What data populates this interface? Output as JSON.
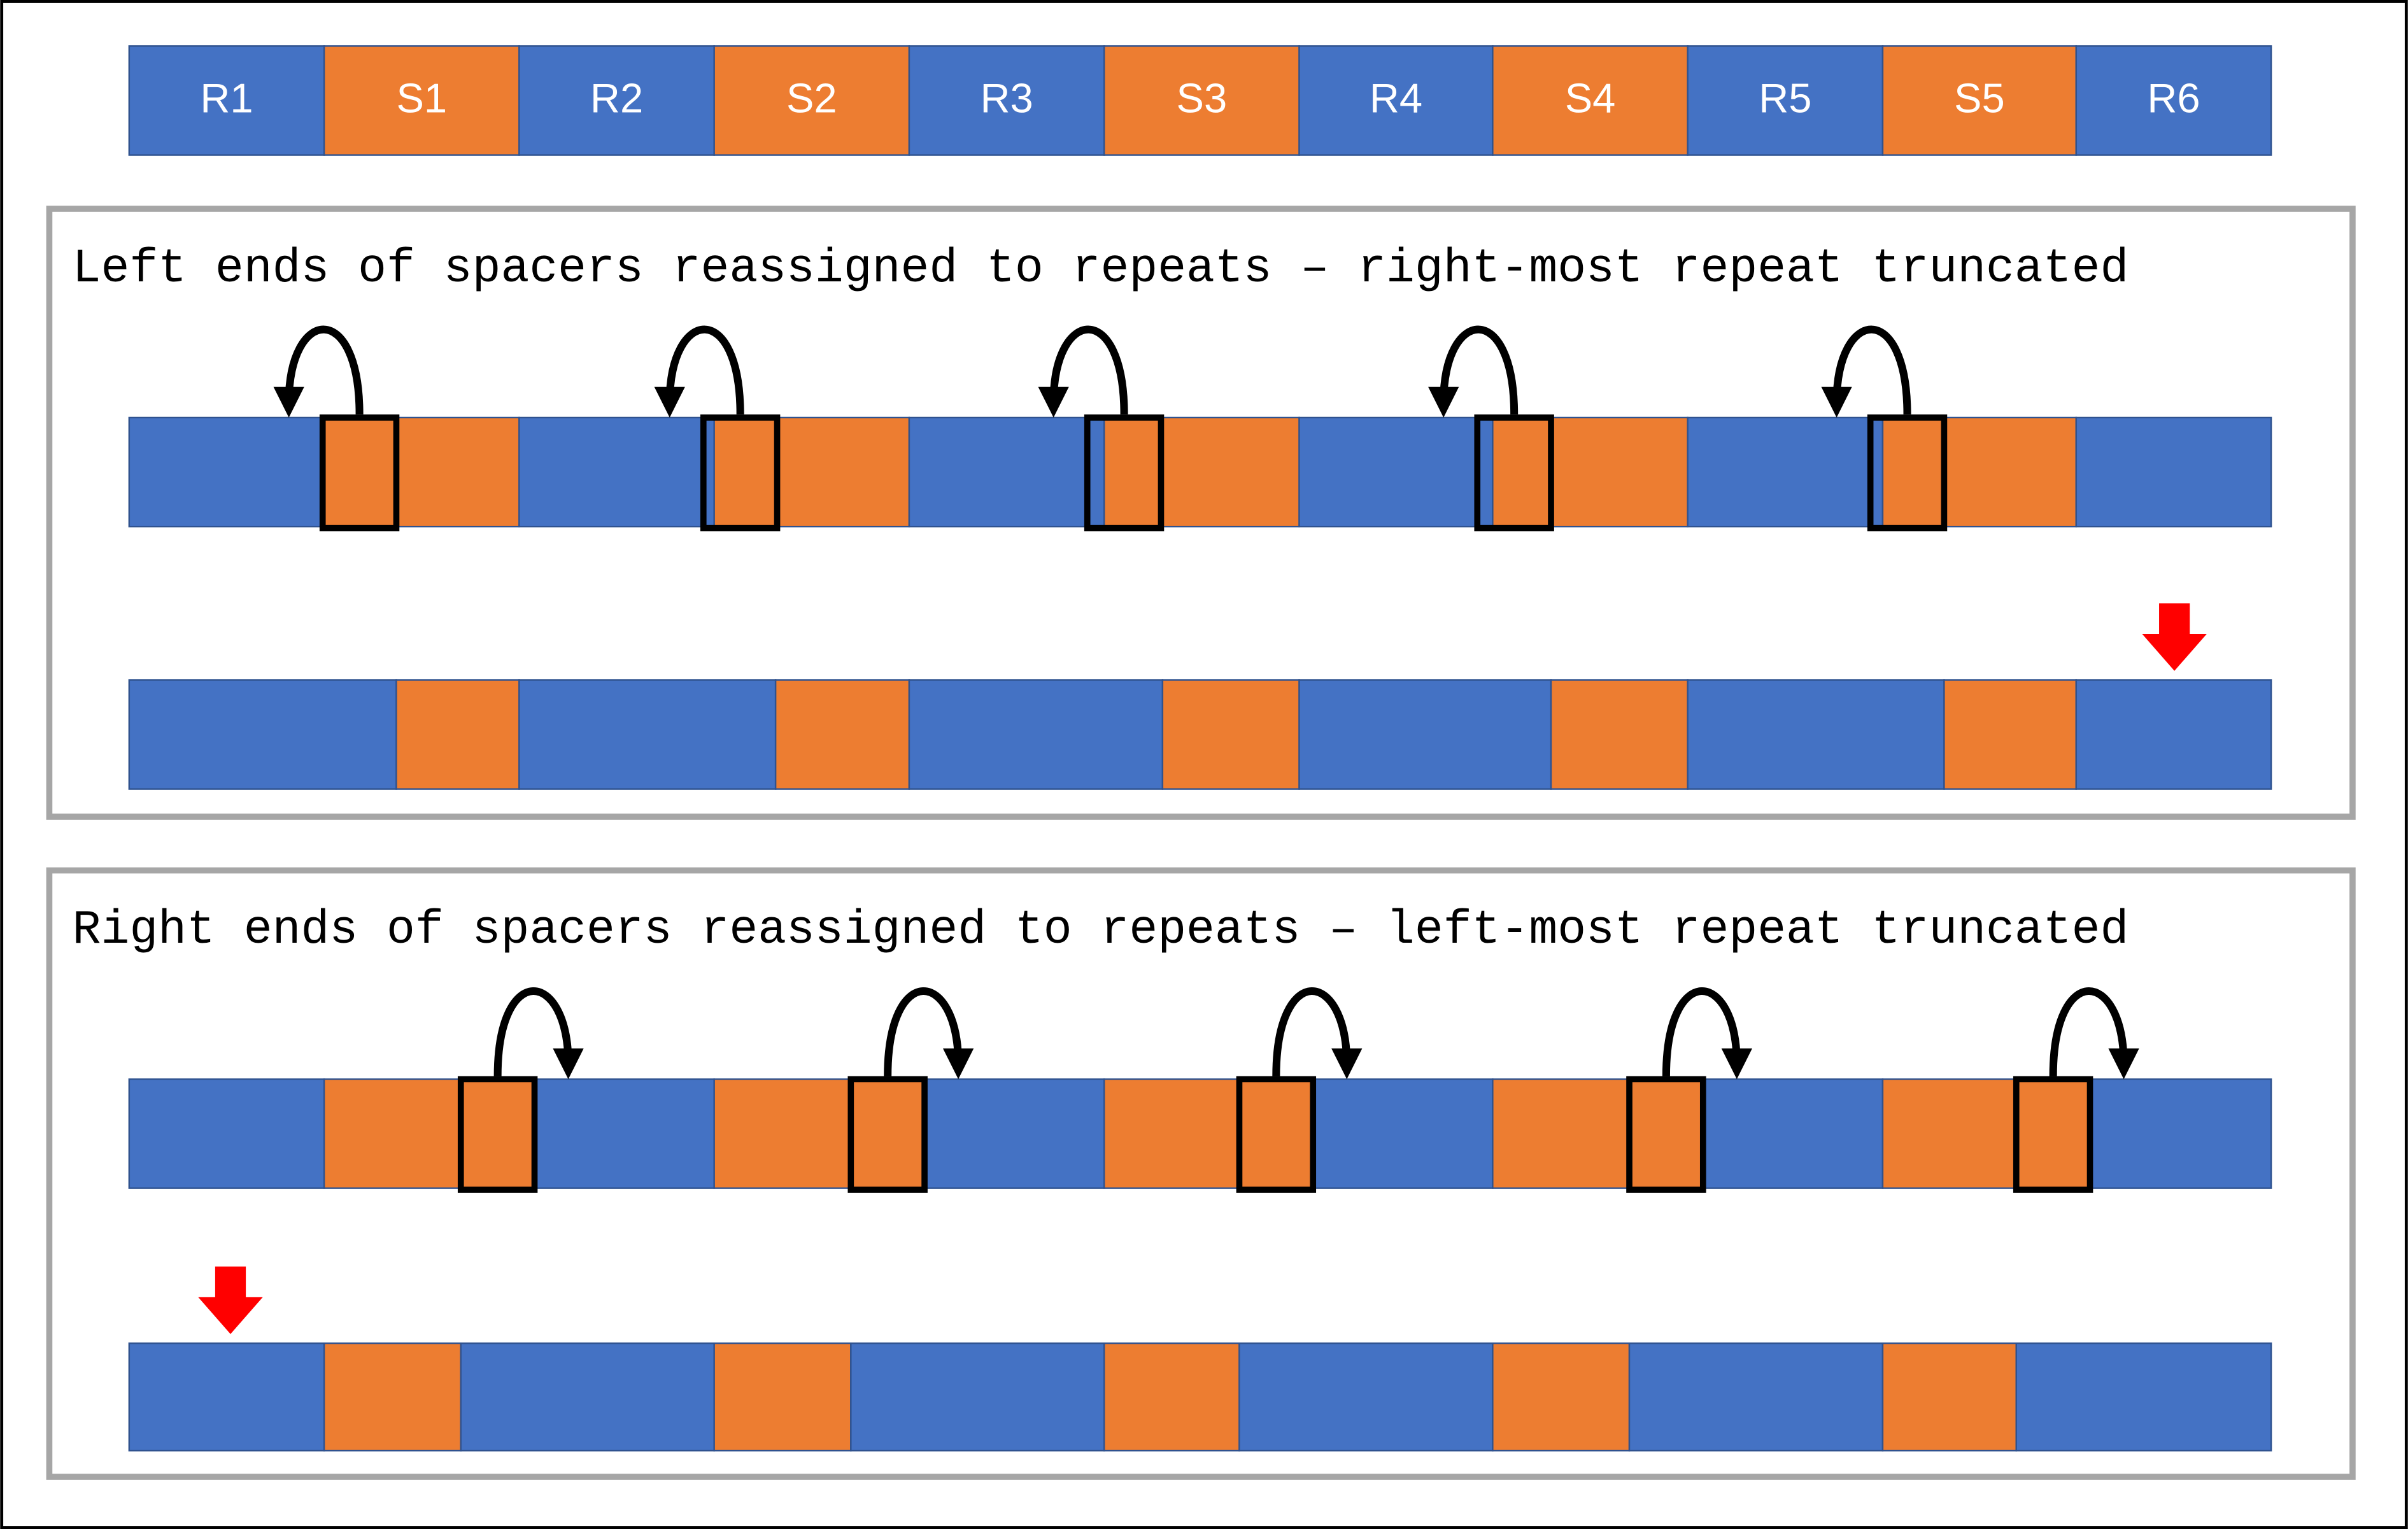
{
  "top_row": {
    "segments": [
      "R1",
      "S1",
      "R2",
      "S2",
      "R3",
      "S3",
      "R4",
      "S4",
      "R5",
      "S5",
      "R6"
    ]
  },
  "sections": [
    {
      "title": "Left ends of spacers reassigned to repeats – right-most repeat truncated"
    },
    {
      "title": "Right ends of spacers reassigned to repeats – left-most repeat truncated"
    }
  ]
}
